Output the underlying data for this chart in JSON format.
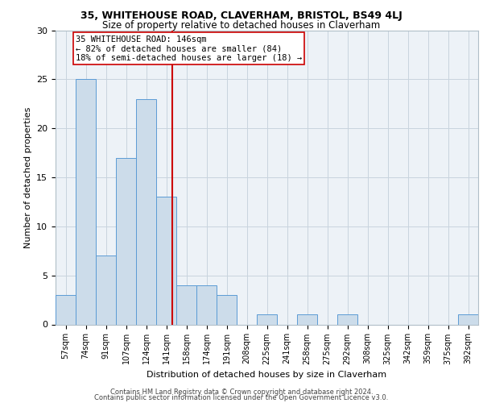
{
  "title1": "35, WHITEHOUSE ROAD, CLAVERHAM, BRISTOL, BS49 4LJ",
  "title2": "Size of property relative to detached houses in Claverham",
  "xlabel": "Distribution of detached houses by size in Claverham",
  "ylabel": "Number of detached properties",
  "bin_labels": [
    "57sqm",
    "74sqm",
    "91sqm",
    "107sqm",
    "124sqm",
    "141sqm",
    "158sqm",
    "174sqm",
    "191sqm",
    "208sqm",
    "225sqm",
    "241sqm",
    "258sqm",
    "275sqm",
    "292sqm",
    "308sqm",
    "325sqm",
    "342sqm",
    "359sqm",
    "375sqm",
    "392sqm"
  ],
  "values": [
    3,
    25,
    7,
    17,
    23,
    13,
    4,
    4,
    3,
    0,
    1,
    0,
    1,
    0,
    1,
    0,
    0,
    0,
    0,
    0,
    1
  ],
  "bar_color": "#ccdcea",
  "bar_edge_color": "#5b9bd5",
  "bar_width": 1.0,
  "vline_color": "#cc0000",
  "ylim": [
    0,
    30
  ],
  "yticks": [
    0,
    5,
    10,
    15,
    20,
    25,
    30
  ],
  "annotation_line1": "35 WHITEHOUSE ROAD: 146sqm",
  "annotation_line2": "← 82% of detached houses are smaller (84)",
  "annotation_line3": "18% of semi-detached houses are larger (18) →",
  "annotation_box_color": "#ffffff",
  "annotation_box_edge": "#cc0000",
  "footer_line1": "Contains HM Land Registry data © Crown copyright and database right 2024.",
  "footer_line2": "Contains public sector information licensed under the Open Government Licence v3.0.",
  "grid_color": "#c8d4de",
  "bg_color": "#edf2f7"
}
